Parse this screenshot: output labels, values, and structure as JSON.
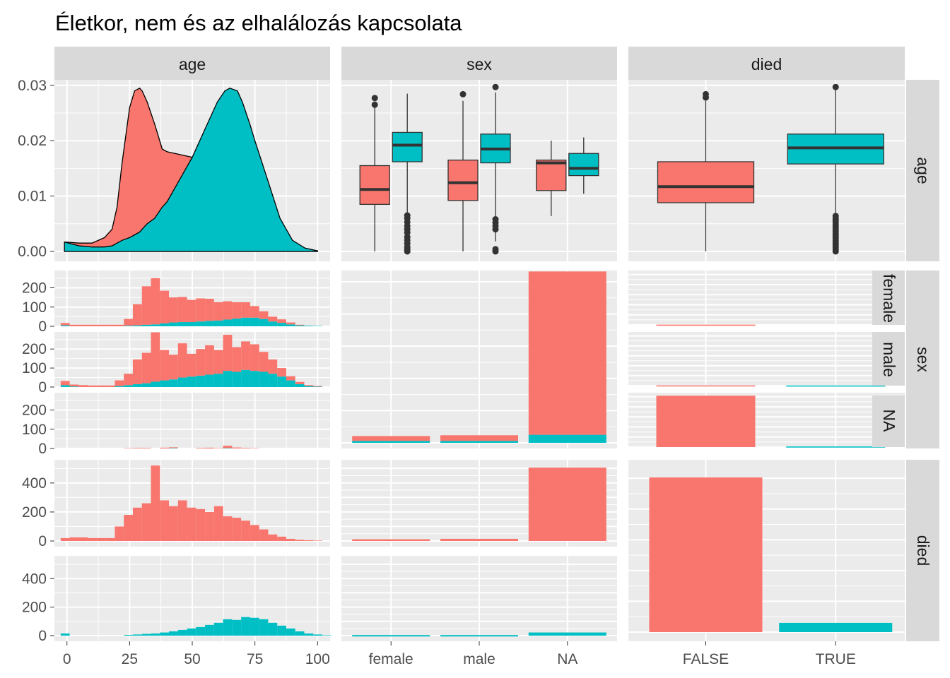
{
  "title": "Életkor, nem és az elhalálozás kapcsolata",
  "colors": {
    "false_fill": "#F8766D",
    "true_fill": "#00BFC4",
    "panel_bg": "#EBEBEB",
    "strip_bg": "#D9D9D9",
    "grid": "#FFFFFF"
  },
  "chart_data": {
    "type": "pairs-matrix",
    "variables": [
      "age",
      "sex",
      "died"
    ],
    "fill_by": "died",
    "fill_levels": [
      "FALSE",
      "TRUE"
    ],
    "column_strips": [
      "age",
      "sex",
      "died"
    ],
    "row_strips": [
      "age",
      "sex",
      "died"
    ],
    "sex_levels": [
      "female",
      "male",
      "NA"
    ],
    "died_levels": [
      "FALSE",
      "TRUE"
    ],
    "age_axis": {
      "ticks": [
        "0",
        "25",
        "50",
        "75",
        "100"
      ],
      "lim": [
        -5,
        105
      ]
    },
    "density_axis": {
      "ticks": [
        "0.00",
        "0.01",
        "0.02",
        "0.03"
      ],
      "lim": [
        0,
        0.031
      ]
    },
    "hist_sex_axis": {
      "ticks": [
        "0",
        "100",
        "200"
      ],
      "lim": [
        0,
        290
      ]
    },
    "hist_died_axis": {
      "ticks": [
        "0",
        "200",
        "400"
      ],
      "lim": [
        0,
        560
      ]
    },
    "density": {
      "x": [
        -1,
        5,
        10,
        15,
        18,
        20,
        22,
        25,
        27,
        29,
        30,
        32,
        35,
        38,
        40,
        45,
        50,
        55,
        60,
        63,
        65,
        68,
        70,
        73,
        75,
        80,
        85,
        90,
        95,
        100
      ],
      "series": [
        {
          "name": "FALSE",
          "values": [
            0.0017,
            0.0015,
            0.0015,
            0.0025,
            0.004,
            0.008,
            0.016,
            0.026,
            0.029,
            0.0295,
            0.029,
            0.027,
            0.023,
            0.0185,
            0.018,
            0.0175,
            0.017,
            0.016,
            0.015,
            0.0135,
            0.012,
            0.01,
            0.008,
            0.006,
            0.005,
            0.003,
            0.0015,
            0.0007,
            0.0003,
            0.0001
          ]
        },
        {
          "name": "TRUE",
          "values": [
            0.0017,
            0.001,
            0.0008,
            0.0008,
            0.001,
            0.0015,
            0.002,
            0.0025,
            0.003,
            0.0035,
            0.004,
            0.005,
            0.006,
            0.008,
            0.009,
            0.013,
            0.017,
            0.022,
            0.027,
            0.029,
            0.0295,
            0.029,
            0.027,
            0.023,
            0.02,
            0.013,
            0.006,
            0.002,
            0.0006,
            0.0001
          ]
        }
      ]
    },
    "boxplots_age_by_sex": [
      {
        "sex": "female",
        "died": "FALSE",
        "lower": 0.0,
        "q1": 0.0085,
        "median": 0.0112,
        "q3": 0.0155,
        "upper": 0.0262,
        "outliers": [
          0.0265,
          0.0277
        ]
      },
      {
        "sex": "female",
        "died": "TRUE",
        "lower": 0.0,
        "q1": 0.0162,
        "median": 0.0192,
        "q3": 0.0215,
        "upper": 0.0285,
        "outliers": [
          0.0,
          0.0004,
          0.0008,
          0.0014,
          0.002,
          0.0026,
          0.0034,
          0.004,
          0.0046,
          0.0053,
          0.006,
          0.0065
        ]
      },
      {
        "sex": "male",
        "died": "FALSE",
        "lower": 0.0,
        "q1": 0.0092,
        "median": 0.0124,
        "q3": 0.0165,
        "upper": 0.0272,
        "outliers": [
          0.0284
        ]
      },
      {
        "sex": "male",
        "died": "TRUE",
        "lower": 0.0018,
        "q1": 0.016,
        "median": 0.0185,
        "q3": 0.0212,
        "upper": 0.0287,
        "outliers": [
          0.0,
          0.0004,
          0.004,
          0.0046,
          0.0052,
          0.0058,
          0.0297
        ]
      },
      {
        "sex": "NA",
        "died": "FALSE",
        "lower": 0.0064,
        "q1": 0.011,
        "median": 0.016,
        "q3": 0.0165,
        "upper": 0.02,
        "outliers": []
      },
      {
        "sex": "NA",
        "died": "TRUE",
        "lower": 0.0104,
        "q1": 0.0137,
        "median": 0.015,
        "q3": 0.0177,
        "upper": 0.0206,
        "outliers": []
      }
    ],
    "boxplots_age_by_died": [
      {
        "died": "FALSE",
        "lower": 0.0,
        "q1": 0.0088,
        "median": 0.0117,
        "q3": 0.0162,
        "upper": 0.0272,
        "outliers": [
          0.0278,
          0.0284
        ]
      },
      {
        "died": "TRUE",
        "lower": 0.0,
        "q1": 0.0158,
        "median": 0.0187,
        "q3": 0.0212,
        "upper": 0.0297,
        "outliers": [
          0.0,
          0.0004,
          0.0008,
          0.0012,
          0.0016,
          0.002,
          0.0024,
          0.0028,
          0.0032,
          0.0036,
          0.004,
          0.0044,
          0.0048,
          0.0052,
          0.0056,
          0.006,
          0.0064,
          0.0297
        ]
      }
    ],
    "hist_bins": {
      "start": -2.5,
      "width": 3.6,
      "count": 31
    },
    "hist_age_by_sex": [
      {
        "sex": "female",
        "FALSE": [
          12,
          8,
          8,
          8,
          8,
          8,
          8,
          35,
          110,
          200,
          240,
          170,
          130,
          130,
          115,
          120,
          115,
          95,
          95,
          85,
          80,
          60,
          40,
          25,
          18,
          10,
          3,
          0,
          0,
          0,
          0
        ],
        "TRUE": [
          5,
          0,
          0,
          0,
          0,
          0,
          0,
          3,
          5,
          8,
          10,
          15,
          20,
          22,
          22,
          25,
          28,
          30,
          35,
          40,
          45,
          45,
          38,
          25,
          18,
          10,
          5,
          3,
          2,
          0,
          0
        ]
      },
      {
        "sex": "male",
        "FALSE": [
          22,
          10,
          10,
          8,
          8,
          8,
          30,
          60,
          130,
          160,
          260,
          160,
          130,
          180,
          120,
          140,
          155,
          125,
          190,
          130,
          150,
          140,
          105,
          75,
          45,
          22,
          12,
          5,
          3,
          0,
          0
        ],
        "TRUE": [
          10,
          3,
          0,
          0,
          0,
          0,
          5,
          10,
          15,
          20,
          28,
          35,
          40,
          50,
          55,
          60,
          65,
          70,
          85,
          80,
          90,
          85,
          80,
          70,
          55,
          35,
          15,
          5,
          2,
          0,
          0
        ]
      },
      {
        "sex": "NA",
        "FALSE": [
          0,
          0,
          0,
          0,
          0,
          0,
          0,
          2,
          3,
          3,
          0,
          4,
          4,
          0,
          0,
          3,
          4,
          2,
          12,
          5,
          3,
          2,
          0,
          0,
          0,
          0,
          0,
          0,
          0,
          0,
          0
        ],
        "TRUE": [
          0,
          0,
          0,
          0,
          0,
          0,
          0,
          0,
          0,
          0,
          0,
          0,
          2,
          0,
          0,
          0,
          0,
          0,
          2,
          0,
          0,
          0,
          0,
          0,
          0,
          0,
          0,
          0,
          0,
          0,
          0
        ]
      }
    ],
    "hist_age_by_died": [
      {
        "died": "FALSE",
        "values": [
          20,
          25,
          25,
          20,
          20,
          20,
          100,
          180,
          230,
          260,
          520,
          280,
          240,
          280,
          230,
          220,
          200,
          240,
          170,
          160,
          140,
          110,
          80,
          45,
          30,
          15,
          8,
          5,
          3,
          0,
          0
        ]
      },
      {
        "died": "TRUE",
        "values": [
          15,
          0,
          0,
          0,
          0,
          0,
          0,
          5,
          8,
          12,
          15,
          22,
          30,
          40,
          50,
          60,
          75,
          90,
          115,
          110,
          130,
          125,
          115,
          90,
          70,
          50,
          30,
          15,
          8,
          3,
          0
        ]
      }
    ],
    "bars_sex_by_died": {
      "row_levels": [
        "FALSE",
        "TRUE"
      ],
      "categories": [
        "female",
        "male",
        "NA"
      ],
      "FALSE": {
        "FALSE": [
          12,
          15,
          505
        ],
        "TRUE": [
          0,
          0,
          0
        ]
      },
      "TRUE": {
        "FALSE": [
          0,
          0,
          0
        ],
        "TRUE": [
          4,
          4,
          22
        ]
      }
    },
    "bars_sex_count": {
      "categories": [
        "female",
        "male",
        "NA"
      ],
      "FALSE": [
        30,
        35,
        1014
      ],
      "TRUE": [
        12,
        12,
        50
      ],
      "lim": [
        0,
        1070
      ]
    },
    "bars_died_by_sex": [
      {
        "sex": "female",
        "values": {
          "FALSE": 5,
          "TRUE": 0
        }
      },
      {
        "sex": "male",
        "values": {
          "FALSE": 5,
          "TRUE": 3
        }
      },
      {
        "sex": "NA",
        "values": {
          "FALSE": 1020,
          "TRUE": 12
        }
      }
    ],
    "bars_died_by_sex_lim": [
      0,
      1080
    ],
    "bars_died_count": {
      "categories": [
        "FALSE",
        "TRUE"
      ],
      "values": [
        1005,
        60
      ],
      "lim": [
        0,
        1065
      ]
    }
  }
}
